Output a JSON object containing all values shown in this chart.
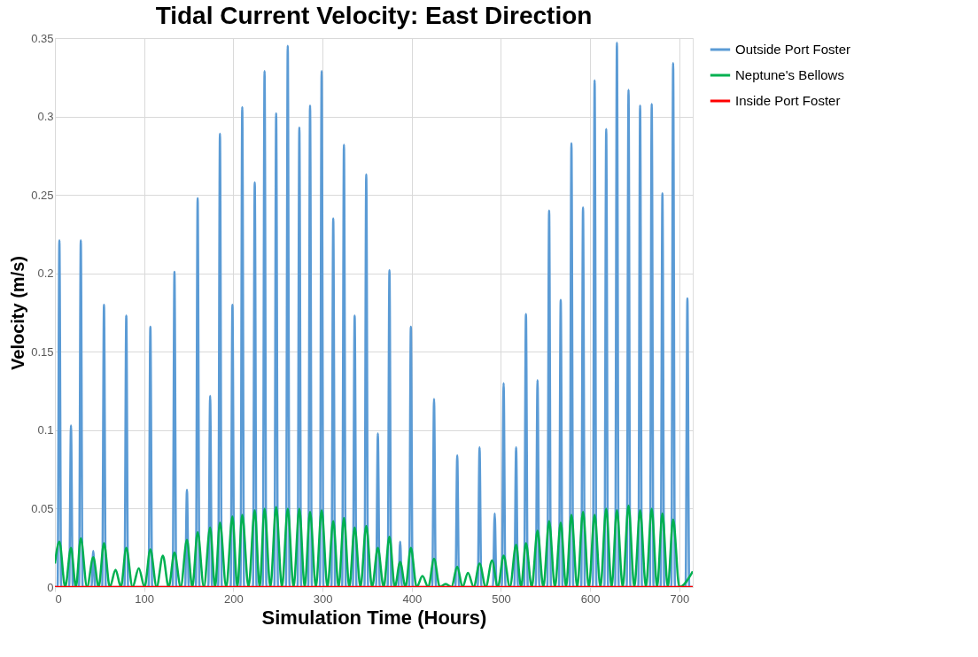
{
  "chart_data": {
    "type": "line",
    "title": "Tidal Current Velocity: East Direction",
    "xlabel": "Simulation Time (Hours)",
    "ylabel": "Velocity (m/s)",
    "xlim": [
      0,
      715
    ],
    "xticks": [
      0,
      100,
      200,
      300,
      400,
      500,
      600,
      700
    ],
    "ylim": [
      0,
      0.35
    ],
    "yticks": [
      0,
      0.05,
      0.1,
      0.15,
      0.2,
      0.25,
      0.3,
      0.35
    ],
    "grid": true,
    "legend": "right",
    "marker": "none",
    "line_style": "solid",
    "series": [
      {
        "name": "Outside Port Foster",
        "color": "#5b9bd5",
        "x": [
          0,
          3,
          5,
          7,
          16,
          18,
          20,
          27,
          29,
          31,
          41,
          43,
          45,
          53,
          55,
          57,
          78,
          80,
          82,
          105,
          107,
          109,
          132,
          134,
          136,
          146,
          148,
          150,
          158,
          160,
          162,
          172,
          174,
          176,
          183,
          185,
          187,
          197,
          199,
          201,
          208,
          210,
          212,
          222,
          224,
          226,
          233,
          235,
          237,
          246,
          248,
          250,
          259,
          261,
          263,
          272,
          274,
          276,
          284,
          286,
          288,
          297,
          299,
          301,
          310,
          312,
          314,
          322,
          324,
          326,
          334,
          336,
          338,
          347,
          349,
          351,
          360,
          362,
          364,
          373,
          375,
          377,
          385,
          387,
          389,
          397,
          399,
          401,
          423,
          425,
          427,
          449,
          451,
          453,
          474,
          476,
          478,
          491,
          493,
          495,
          501,
          503,
          505,
          515,
          517,
          519,
          526,
          528,
          530,
          539,
          541,
          543,
          552,
          554,
          556,
          565,
          567,
          569,
          577,
          579,
          581,
          590,
          592,
          594,
          603,
          605,
          607,
          616,
          618,
          620,
          628,
          630,
          632,
          641,
          643,
          645,
          654,
          656,
          658,
          667,
          669,
          671,
          679,
          681,
          683,
          691,
          693,
          695,
          707,
          709,
          711,
          715
        ],
        "values": [
          0,
          0,
          0.221,
          0,
          0,
          0.103,
          0,
          0,
          0.221,
          0,
          0,
          0.023,
          0,
          0,
          0.18,
          0,
          0,
          0.173,
          0,
          0,
          0.166,
          0,
          0,
          0.201,
          0,
          0,
          0.062,
          0,
          0,
          0.248,
          0,
          0,
          0.122,
          0,
          0,
          0.289,
          0,
          0,
          0.18,
          0,
          0,
          0.306,
          0,
          0,
          0.258,
          0,
          0,
          0.329,
          0,
          0,
          0.302,
          0,
          0,
          0.345,
          0,
          0,
          0.293,
          0,
          0,
          0.307,
          0,
          0,
          0.329,
          0,
          0,
          0.235,
          0,
          0,
          0.282,
          0,
          0,
          0.173,
          0,
          0,
          0.263,
          0,
          0,
          0.098,
          0,
          0,
          0.202,
          0,
          0,
          0.029,
          0,
          0,
          0.166,
          0,
          0,
          0.12,
          0,
          0,
          0.084,
          0,
          0,
          0.089,
          0,
          0,
          0.047,
          0,
          0,
          0.13,
          0,
          0,
          0.089,
          0,
          0,
          0.174,
          0,
          0,
          0.132,
          0,
          0,
          0.24,
          0,
          0,
          0.183,
          0,
          0,
          0.283,
          0,
          0,
          0.242,
          0,
          0,
          0.323,
          0,
          0,
          0.292,
          0,
          0,
          0.347,
          0,
          0,
          0.317,
          0,
          0,
          0.307,
          0,
          0,
          0.308,
          0,
          0,
          0.251,
          0,
          0,
          0.334,
          0,
          0,
          0.184,
          0,
          0
        ]
      },
      {
        "name": "Neptune's Bellows",
        "color": "#00b050",
        "x": [
          0,
          5,
          11.5,
          18,
          23.5,
          29,
          36,
          43,
          49,
          55,
          61.5,
          68,
          74,
          80,
          87,
          94,
          100.5,
          107,
          114,
          121,
          127.5,
          134,
          141,
          148,
          154,
          160,
          167,
          174,
          179.5,
          185,
          192,
          199,
          204.5,
          210,
          217,
          224,
          229.5,
          235,
          241.5,
          248,
          254.5,
          261,
          267.5,
          274,
          280,
          286,
          292.5,
          299,
          305.5,
          312,
          318,
          324,
          330,
          336,
          342.5,
          349,
          355.5,
          362,
          368.5,
          375,
          381,
          387,
          393,
          399,
          405.5,
          412,
          418.5,
          425,
          431.5,
          438,
          444.5,
          451,
          457,
          463,
          469.5,
          476,
          483,
          490,
          496.5,
          503,
          510,
          517,
          522.5,
          528,
          534.5,
          541,
          547.5,
          554,
          560.5,
          567,
          573,
          579,
          585.5,
          592,
          598.5,
          605,
          611.5,
          618,
          624,
          630,
          636.5,
          643,
          649.5,
          656,
          662.5,
          669,
          675,
          681,
          687,
          693,
          700,
          715
        ],
        "values": [
          0.015,
          0.029,
          0,
          0.025,
          0,
          0.031,
          0,
          0.019,
          0,
          0.028,
          0,
          0.011,
          0,
          0.025,
          0,
          0.012,
          0,
          0.024,
          0,
          0.02,
          0,
          0.022,
          0,
          0.03,
          0,
          0.035,
          0,
          0.038,
          0,
          0.041,
          0,
          0.045,
          0,
          0.046,
          0,
          0.049,
          0,
          0.05,
          0,
          0.051,
          0,
          0.05,
          0,
          0.05,
          0,
          0.048,
          0,
          0.049,
          0,
          0.042,
          0,
          0.044,
          0,
          0.038,
          0,
          0.039,
          0,
          0.025,
          0,
          0.032,
          0,
          0.016,
          0,
          0.025,
          0,
          0.007,
          0,
          0.018,
          0,
          0.002,
          0,
          0.013,
          0,
          0.009,
          0,
          0.015,
          0,
          0.017,
          0,
          0.02,
          0,
          0.027,
          0,
          0.028,
          0,
          0.036,
          0,
          0.042,
          0,
          0.041,
          0,
          0.046,
          0,
          0.048,
          0,
          0.046,
          0,
          0.05,
          0,
          0.049,
          0,
          0.052,
          0,
          0.049,
          0,
          0.05,
          0,
          0.047,
          0,
          0.043,
          0,
          0.01
        ]
      },
      {
        "name": "Inside Port Foster",
        "color": "#ff0000",
        "x": [
          0,
          715
        ],
        "values": [
          0,
          0
        ]
      }
    ]
  }
}
